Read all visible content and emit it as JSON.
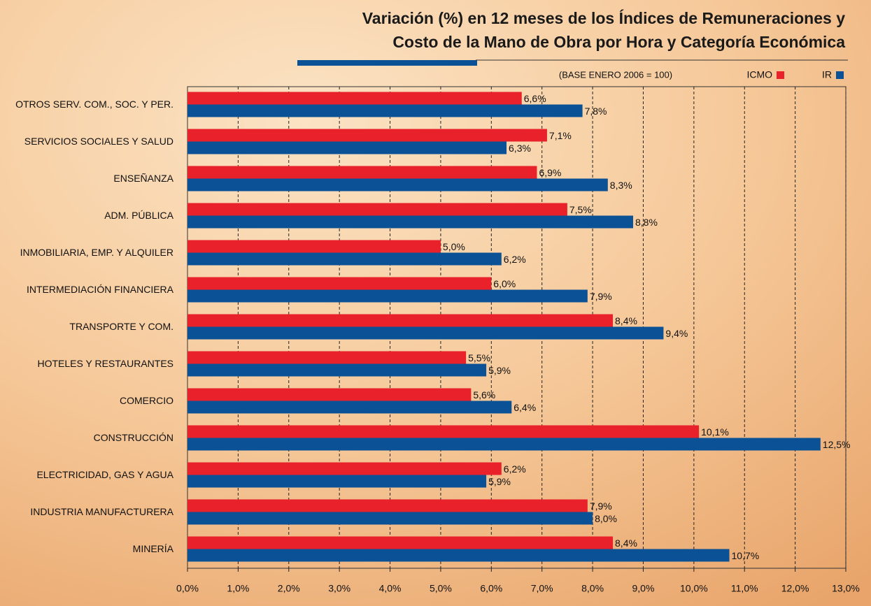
{
  "chart_data": {
    "type": "hbar",
    "title_lines": [
      "Variación (%) en 12 meses de los Índices de Remuneraciones y",
      "Costo de la Mano de Obra por Hora y Categoría Económica"
    ],
    "subtitle": "(BASE ENERO 2006 = 100)",
    "categories": [
      "OTROS SERV. COM., SOC. Y PER.",
      "SERVICIOS SOCIALES Y SALUD",
      "ENSEÑANZA",
      "ADM. PÚBLICA",
      "INMOBILIARIA, EMP. Y ALQUILER",
      "INTERMEDIACIÓN FINANCIERA",
      "TRANSPORTE Y COM.",
      "HOTELES Y RESTAURANTES",
      "COMERCIO",
      "CONSTRUCCIÓN",
      "ELECTRICIDAD, GAS Y AGUA",
      "INDUSTRIA MANUFACTURERA",
      "MINERÍA"
    ],
    "series": [
      {
        "name": "ICMO",
        "color": "#e8212b",
        "values": [
          6.6,
          7.1,
          6.9,
          7.5,
          5.0,
          6.0,
          8.4,
          5.5,
          5.6,
          10.1,
          6.2,
          7.9,
          8.4
        ],
        "value_labels": [
          "6,6%",
          "7,1%",
          "6,9%",
          "7,5%",
          "5,0%",
          "6,0%",
          "8,4%",
          "5,5%",
          "5,6%",
          "10,1%",
          "6,2%",
          "7,9%",
          "8,4%"
        ]
      },
      {
        "name": "IR",
        "color": "#0b5196",
        "values": [
          7.8,
          6.3,
          8.3,
          8.8,
          6.2,
          7.9,
          9.4,
          5.9,
          6.4,
          12.5,
          5.9,
          8.0,
          10.7
        ],
        "value_labels": [
          "7,8%",
          "6,3%",
          "8,3%",
          "8,8%",
          "6,2%",
          "7,9%",
          "9,4%",
          "5,9%",
          "6,4%",
          "12,5%",
          "5,9%",
          "8,0%",
          "10,7%"
        ]
      }
    ],
    "xlim": [
      0,
      13
    ],
    "xticks": [
      {
        "value": 0,
        "label": "0,0%"
      },
      {
        "value": 1,
        "label": "1,0%"
      },
      {
        "value": 2,
        "label": "2,0%"
      },
      {
        "value": 3,
        "label": "3,0%"
      },
      {
        "value": 4,
        "label": "4,0%"
      },
      {
        "value": 5,
        "label": "5,0%"
      },
      {
        "value": 6,
        "label": "6,0%"
      },
      {
        "value": 7,
        "label": "7,0%"
      },
      {
        "value": 8,
        "label": "8,0%"
      },
      {
        "value": 9,
        "label": "9,0%"
      },
      {
        "value": 10,
        "label": "10,0%"
      },
      {
        "value": 11,
        "label": "11,0%"
      },
      {
        "value": 12,
        "label": "12,0%"
      },
      {
        "value": 13,
        "label": "13,0%"
      }
    ],
    "grid": true,
    "legend": "top-right"
  }
}
